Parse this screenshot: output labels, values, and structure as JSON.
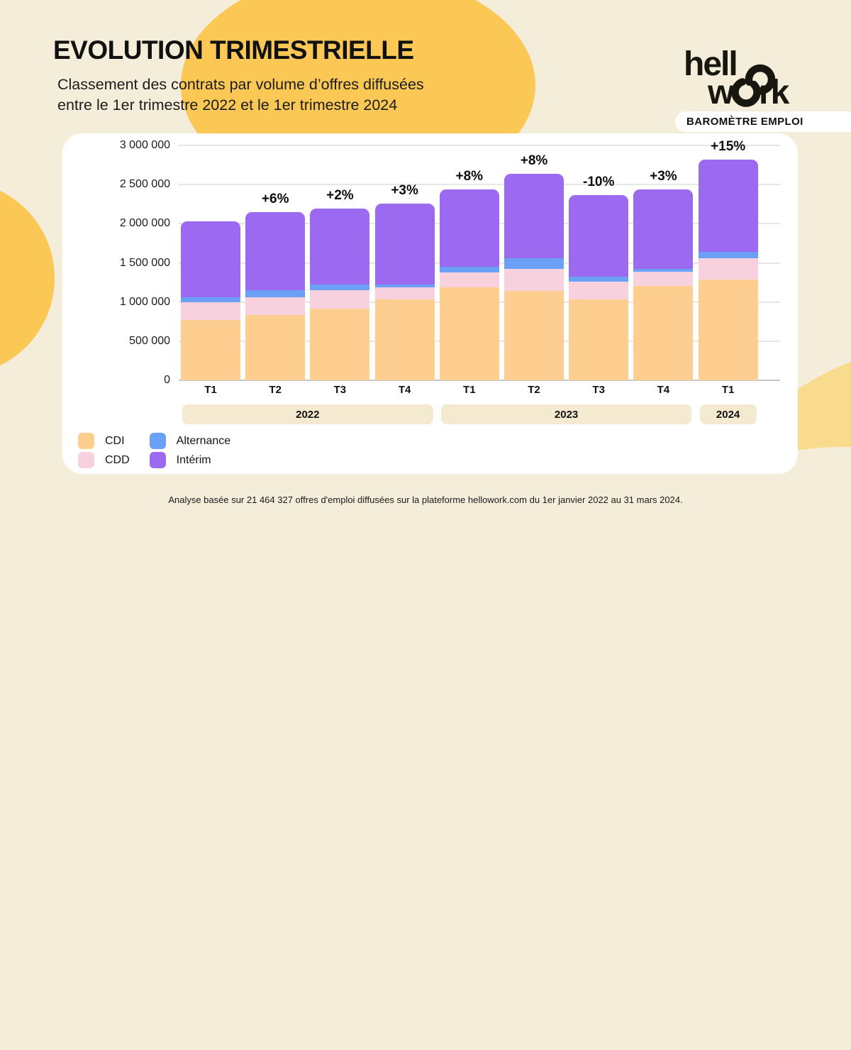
{
  "header": {
    "title": "EVOLUTION TRIMESTRIELLE",
    "subtitle_line1": "Classement des contrats par volume d’offres diffusées",
    "subtitle_line2": "entre le 1er trimestre 2022 et le 1er trimestre 2024",
    "logo_name": "hellowork",
    "badge": "BAROMÈTRE EMPLOI"
  },
  "colors": {
    "background": "#F4EDDA",
    "yellow_blob": "#FBC755",
    "light_yellow_blob": "#F8DB8D",
    "card": "#FFFFFF",
    "cdi": "#FECD90",
    "cdd": "#F7D1DE",
    "alternance": "#6AA0F5",
    "interim": "#9B6AF0",
    "year_band": "#F3EAD0"
  },
  "chart_data": {
    "type": "bar",
    "stacked": true,
    "title": "",
    "xlabel": "",
    "ylabel": "",
    "grid": true,
    "legend_position": "bottom-left",
    "categories": [
      "T1",
      "T2",
      "T3",
      "T4",
      "T1",
      "T2",
      "T3",
      "T4",
      "T1"
    ],
    "year_groups": [
      {
        "label": "2022",
        "span": [
          0,
          3
        ]
      },
      {
        "label": "2023",
        "span": [
          4,
          7
        ]
      },
      {
        "label": "2024",
        "span": [
          8,
          8
        ]
      }
    ],
    "series": [
      {
        "name": "CDI",
        "color": "#FECD90",
        "values": [
          770000,
          830000,
          920000,
          1035000,
          1185000,
          1140000,
          1035000,
          1210000,
          1290000
        ]
      },
      {
        "name": "CDD",
        "color": "#F7D1DE",
        "values": [
          225000,
          235000,
          235000,
          150000,
          190000,
          285000,
          225000,
          180000,
          265000
        ]
      },
      {
        "name": "Alternance",
        "color": "#6AA0F5",
        "values": [
          65000,
          90000,
          65000,
          40000,
          75000,
          130000,
          65000,
          35000,
          85000
        ]
      },
      {
        "name": "Intérim",
        "color": "#9B6AF0",
        "values": [
          970000,
          990000,
          970000,
          1030000,
          985000,
          1085000,
          1045000,
          1015000,
          1180000
        ]
      }
    ],
    "totals": [
      2030000,
      2145000,
      2190000,
      2255000,
      2435000,
      2640000,
      2370000,
      2440000,
      2820000
    ],
    "pct_labels": [
      null,
      "+6%",
      "+2%",
      "+3%",
      "+8%",
      "+8%",
      "-10%",
      "+3%",
      "+15%"
    ],
    "ylim": [
      0,
      3000000
    ],
    "yticks": [
      {
        "label": "3 000 000",
        "value": 3000000
      },
      {
        "label": "2 500 000",
        "value": 2500000
      },
      {
        "label": "2 000 000",
        "value": 2000000
      },
      {
        "label": "1 500 000",
        "value": 1500000
      },
      {
        "label": "1 000 000",
        "value": 1000000
      },
      {
        "label": "500 000",
        "value": 500000
      },
      {
        "label": "0",
        "value": 0
      }
    ]
  },
  "footer": {
    "note": "Analyse basée sur 21 464 327 offres d'emploi diffusées sur la plateforme hellowork.com du 1er janvier 2022 au 31 mars 2024."
  }
}
